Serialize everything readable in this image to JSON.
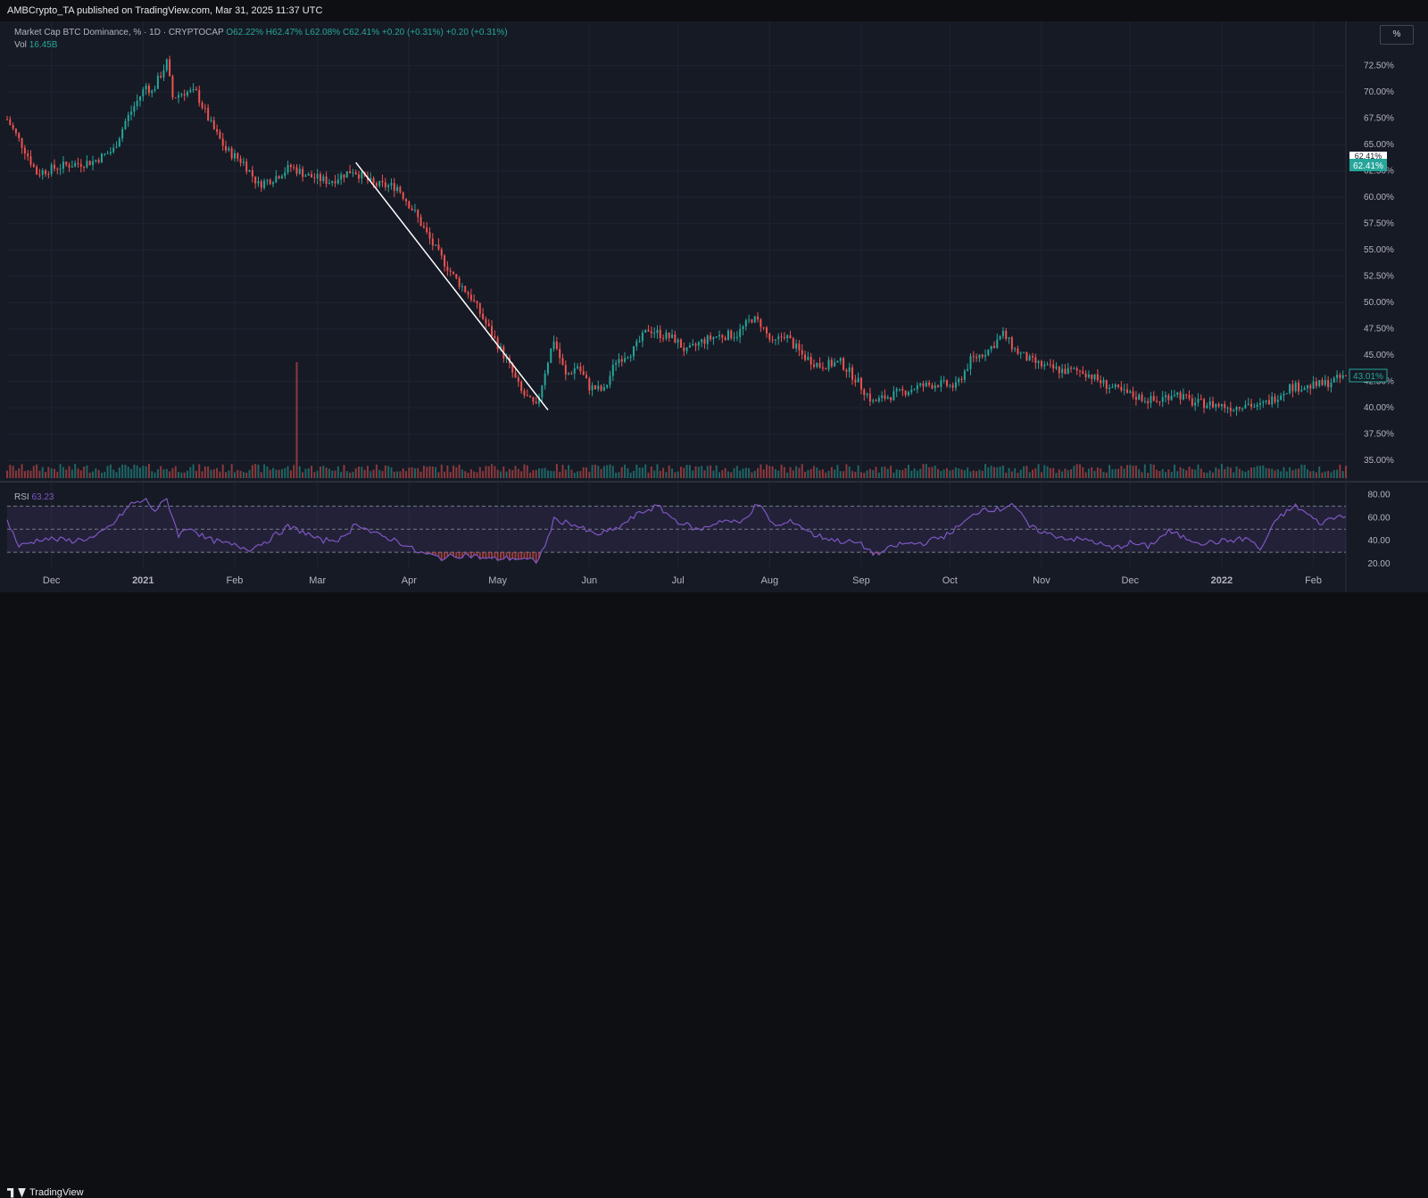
{
  "header": {
    "publisher_text": "AMBCrypto_TA published on TradingView.com, Mar 31, 2025 11:37 UTC"
  },
  "legend": {
    "symbol": "Market Cap BTC Dominance, % · 1D · CRYPTOCAP",
    "open": "O62.22%",
    "high": "H62.47%",
    "low": "L62.08%",
    "close": "C62.41%",
    "change1": "+0.20 (+0.31%)",
    "change2": "+0.20 (+0.31%)",
    "vol_label": "Vol",
    "vol_value": "16.45B",
    "rsi_label": "RSI",
    "rsi_value": "63.23"
  },
  "toolbar": {
    "percent_button": "%"
  },
  "footer": {
    "brand": "TradingView"
  },
  "colors": {
    "up": "#26a69a",
    "down": "#ef5350",
    "rsi_line": "#7e57c2",
    "trendline": "#ffffff",
    "background": "#161a25"
  },
  "chart_data": {
    "type": "candlestick",
    "ylim": [
      34.0,
      74.5
    ],
    "y_tick_labels": [
      "35.00%",
      "37.50%",
      "40.00%",
      "42.50%",
      "45.00%",
      "47.50%",
      "50.00%",
      "52.50%",
      "55.00%",
      "57.50%",
      "60.00%",
      "62.50%",
      "65.00%",
      "67.50%",
      "70.00%",
      "72.50%"
    ],
    "y_ticks": [
      35,
      37.5,
      40,
      42.5,
      45,
      47.5,
      50,
      52.5,
      55,
      57.5,
      60,
      62.5,
      65,
      67.5,
      70,
      72.5
    ],
    "x_tick_labels": [
      "Dec",
      "2021",
      "Feb",
      "Mar",
      "Apr",
      "May",
      "Jun",
      "Jul",
      "Aug",
      "Sep",
      "Oct",
      "Nov",
      "Dec",
      "2022",
      "Feb"
    ],
    "x_ticks": [
      "2020-12-01",
      "2021-01-01",
      "2021-02-01",
      "2021-03-01",
      "2021-04-01",
      "2021-05-01",
      "2021-06-01",
      "2021-07-01",
      "2021-08-01",
      "2021-09-01",
      "2021-10-01",
      "2021-11-01",
      "2021-12-01",
      "2022-01-01",
      "2022-02-01"
    ],
    "x_range": [
      "2020-11-16",
      "2022-02-12"
    ],
    "close_path": [
      [
        "2020-11-16",
        67.4
      ],
      [
        "2020-11-22",
        64.5
      ],
      [
        "2020-11-26",
        62.3
      ],
      [
        "2020-12-05",
        63.0
      ],
      [
        "2020-12-15",
        63.4
      ],
      [
        "2020-12-22",
        64.5
      ],
      [
        "2020-12-26",
        67.2
      ],
      [
        "2021-01-02",
        70.6
      ],
      [
        "2021-01-04",
        70.0
      ],
      [
        "2021-01-09",
        72.8
      ],
      [
        "2021-01-11",
        69.5
      ],
      [
        "2021-01-15",
        70.0
      ],
      [
        "2021-01-19",
        69.9
      ],
      [
        "2021-01-24",
        66.9
      ],
      [
        "2021-01-29",
        64.5
      ],
      [
        "2021-02-04",
        63.3
      ],
      [
        "2021-02-09",
        61.2
      ],
      [
        "2021-02-14",
        61.8
      ],
      [
        "2021-02-20",
        62.9
      ],
      [
        "2021-02-26",
        62.0
      ],
      [
        "2021-03-05",
        61.5
      ],
      [
        "2021-03-13",
        62.6
      ],
      [
        "2021-03-20",
        61.2
      ],
      [
        "2021-03-28",
        61.0
      ],
      [
        "2021-04-03",
        58.5
      ],
      [
        "2021-04-09",
        55.5
      ],
      [
        "2021-04-16",
        52.5
      ],
      [
        "2021-04-22",
        50.5
      ],
      [
        "2021-04-28",
        47.5
      ],
      [
        "2021-05-04",
        44.5
      ],
      [
        "2021-05-09",
        41.5
      ],
      [
        "2021-05-14",
        40.0
      ],
      [
        "2021-05-17",
        43.5
      ],
      [
        "2021-05-20",
        46.5
      ],
      [
        "2021-05-24",
        43.0
      ],
      [
        "2021-05-28",
        44.0
      ],
      [
        "2021-06-01",
        42.0
      ],
      [
        "2021-06-06",
        41.6
      ],
      [
        "2021-06-10",
        44.5
      ],
      [
        "2021-06-16",
        45.5
      ],
      [
        "2021-06-21",
        47.5
      ],
      [
        "2021-06-25",
        47.0
      ],
      [
        "2021-06-30",
        46.5
      ],
      [
        "2021-07-04",
        45.3
      ],
      [
        "2021-07-09",
        46.3
      ],
      [
        "2021-07-14",
        46.8
      ],
      [
        "2021-07-21",
        47.0
      ],
      [
        "2021-07-26",
        48.5
      ],
      [
        "2021-07-29",
        48.0
      ],
      [
        "2021-08-02",
        46.0
      ],
      [
        "2021-08-06",
        47.0
      ],
      [
        "2021-08-12",
        45.0
      ],
      [
        "2021-08-18",
        44.0
      ],
      [
        "2021-08-25",
        44.3
      ],
      [
        "2021-08-30",
        42.8
      ],
      [
        "2021-09-05",
        40.5
      ],
      [
        "2021-09-09",
        41.0
      ],
      [
        "2021-09-15",
        41.5
      ],
      [
        "2021-09-20",
        42.0
      ],
      [
        "2021-09-27",
        42.3
      ],
      [
        "2021-10-03",
        42.0
      ],
      [
        "2021-10-08",
        44.5
      ],
      [
        "2021-10-14",
        45.5
      ],
      [
        "2021-10-19",
        47.0
      ],
      [
        "2021-10-23",
        45.5
      ],
      [
        "2021-10-28",
        44.5
      ],
      [
        "2021-11-03",
        43.8
      ],
      [
        "2021-11-09",
        43.5
      ],
      [
        "2021-11-15",
        43.5
      ],
      [
        "2021-11-22",
        42.3
      ],
      [
        "2021-11-28",
        41.5
      ],
      [
        "2021-12-04",
        41.0
      ],
      [
        "2021-12-10",
        40.6
      ],
      [
        "2021-12-16",
        41.5
      ],
      [
        "2021-12-22",
        40.5
      ],
      [
        "2021-12-30",
        40.3
      ],
      [
        "2022-01-05",
        40.0
      ],
      [
        "2022-01-09",
        40.5
      ],
      [
        "2022-01-13",
        40.0
      ],
      [
        "2022-01-18",
        40.8
      ],
      [
        "2022-01-24",
        42.0
      ],
      [
        "2022-01-30",
        42.0
      ],
      [
        "2022-02-05",
        42.3
      ],
      [
        "2022-02-12",
        43.0
      ]
    ],
    "trendline": {
      "start": [
        "2021-03-14",
        63.3
      ],
      "end": [
        "2021-05-18",
        39.8
      ]
    },
    "volume_spike": {
      "date": "2021-02-22"
    },
    "last_price_label": "62.41%",
    "last_price_label_bg": "62.41%",
    "current_price_label": "43.01%",
    "rsi": {
      "ylim": [
        20,
        85
      ],
      "tick_labels": [
        "80.00",
        "60.00",
        "40.00",
        "20.00"
      ],
      "ticks": [
        80,
        60,
        40,
        20
      ],
      "bands": [
        30,
        50,
        70
      ],
      "path": [
        [
          "2020-11-16",
          58
        ],
        [
          "2020-11-20",
          35
        ],
        [
          "2020-11-28",
          42
        ],
        [
          "2020-12-08",
          40
        ],
        [
          "2020-12-16",
          43
        ],
        [
          "2020-12-22",
          55
        ],
        [
          "2020-12-28",
          72
        ],
        [
          "2021-01-02",
          75
        ],
        [
          "2021-01-05",
          66
        ],
        [
          "2021-01-09",
          76
        ],
        [
          "2021-01-13",
          45
        ],
        [
          "2021-01-17",
          52
        ],
        [
          "2021-01-22",
          42
        ],
        [
          "2021-01-28",
          38
        ],
        [
          "2021-02-06",
          33
        ],
        [
          "2021-02-12",
          40
        ],
        [
          "2021-02-19",
          52
        ],
        [
          "2021-02-24",
          48
        ],
        [
          "2021-03-02",
          40
        ],
        [
          "2021-03-10",
          42
        ],
        [
          "2021-03-14",
          56
        ],
        [
          "2021-03-20",
          46
        ],
        [
          "2021-03-28",
          40
        ],
        [
          "2021-04-04",
          30
        ],
        [
          "2021-04-12",
          25
        ],
        [
          "2021-04-20",
          28
        ],
        [
          "2021-04-28",
          24
        ],
        [
          "2021-05-06",
          25
        ],
        [
          "2021-05-14",
          22
        ],
        [
          "2021-05-17",
          35
        ],
        [
          "2021-05-20",
          58
        ],
        [
          "2021-05-26",
          55
        ],
        [
          "2021-06-03",
          45
        ],
        [
          "2021-06-10",
          50
        ],
        [
          "2021-06-18",
          64
        ],
        [
          "2021-06-24",
          70
        ],
        [
          "2021-06-30",
          58
        ],
        [
          "2021-07-08",
          49
        ],
        [
          "2021-07-16",
          58
        ],
        [
          "2021-07-22",
          55
        ],
        [
          "2021-07-28",
          72
        ],
        [
          "2021-08-03",
          52
        ],
        [
          "2021-08-09",
          57
        ],
        [
          "2021-08-16",
          45
        ],
        [
          "2021-08-24",
          40
        ],
        [
          "2021-08-31",
          38
        ],
        [
          "2021-09-06",
          28
        ],
        [
          "2021-09-14",
          37
        ],
        [
          "2021-09-22",
          38
        ],
        [
          "2021-09-30",
          45
        ],
        [
          "2021-10-06",
          56
        ],
        [
          "2021-10-12",
          68
        ],
        [
          "2021-10-18",
          67
        ],
        [
          "2021-10-22",
          73
        ],
        [
          "2021-10-28",
          52
        ],
        [
          "2021-11-03",
          46
        ],
        [
          "2021-11-10",
          42
        ],
        [
          "2021-11-18",
          40
        ],
        [
          "2021-11-25",
          33
        ],
        [
          "2021-12-01",
          38
        ],
        [
          "2021-12-07",
          35
        ],
        [
          "2021-12-14",
          48
        ],
        [
          "2021-12-20",
          42
        ],
        [
          "2021-12-26",
          38
        ],
        [
          "2022-01-03",
          40
        ],
        [
          "2022-01-10",
          42
        ],
        [
          "2022-01-14",
          32
        ],
        [
          "2022-01-20",
          60
        ],
        [
          "2022-01-26",
          70
        ],
        [
          "2022-01-30",
          63
        ],
        [
          "2022-02-03",
          55
        ],
        [
          "2022-02-08",
          60
        ],
        [
          "2022-02-12",
          63
        ]
      ]
    }
  }
}
